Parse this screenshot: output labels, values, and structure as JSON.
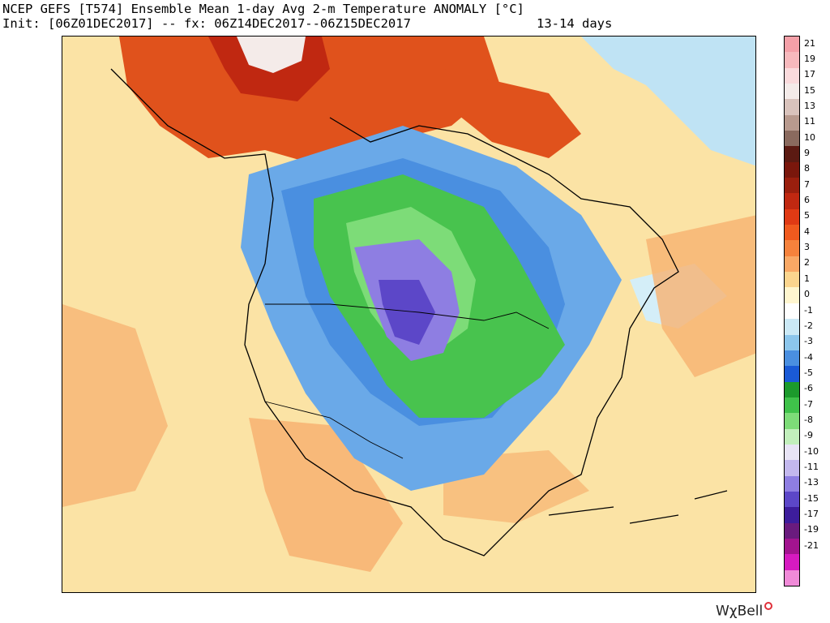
{
  "header": {
    "line1": "NCEP GEFS [T574] Ensemble Mean 1-day Avg 2-m Temperature ANOMALY [°C]",
    "line2": "Init: [06Z01DEC2017] -- fx: 06Z14DEC2017--06Z15DEC2017",
    "range": "13-14 days"
  },
  "brand": "WχBell",
  "colorbar": {
    "units": "°C",
    "levels": [
      {
        "label": "21",
        "color": "#f4a0a8"
      },
      {
        "label": "19",
        "color": "#f7b9bd"
      },
      {
        "label": "17",
        "color": "#fadadc"
      },
      {
        "label": "15",
        "color": "#f4ebe9"
      },
      {
        "label": "13",
        "color": "#d9c3bc"
      },
      {
        "label": "11",
        "color": "#b89a8e"
      },
      {
        "label": "10",
        "color": "#8a6a5e"
      },
      {
        "label": "9",
        "color": "#5b1a12"
      },
      {
        "label": "8",
        "color": "#7a170c"
      },
      {
        "label": "7",
        "color": "#9a1f0e"
      },
      {
        "label": "6",
        "color": "#c02811"
      },
      {
        "label": "5",
        "color": "#e03a14"
      },
      {
        "label": "4",
        "color": "#f05a1e"
      },
      {
        "label": "3",
        "color": "#f6823c"
      },
      {
        "label": "2",
        "color": "#f9a865"
      },
      {
        "label": "1",
        "color": "#fbd58e"
      },
      {
        "label": "0",
        "color": "#fff6cf"
      },
      {
        "label": "-1",
        "color": "#ffffff"
      },
      {
        "label": "-2",
        "color": "#cbe9f6"
      },
      {
        "label": "-3",
        "color": "#8cc6ec"
      },
      {
        "label": "-4",
        "color": "#4a8fe0"
      },
      {
        "label": "-5",
        "color": "#1a5ad6"
      },
      {
        "label": "-6",
        "color": "#1c9a2c"
      },
      {
        "label": "-7",
        "color": "#3fc24a"
      },
      {
        "label": "-8",
        "color": "#7ddc78"
      },
      {
        "label": "-9",
        "color": "#c2efbc"
      },
      {
        "label": "-10",
        "color": "#e8e4f6"
      },
      {
        "label": "-11",
        "color": "#c3b8ee"
      },
      {
        "label": "-13",
        "color": "#8e7ee2"
      },
      {
        "label": "-15",
        "color": "#5c47c8"
      },
      {
        "label": "-17",
        "color": "#3d1d9c"
      },
      {
        "label": "-19",
        "color": "#6a1b7e"
      },
      {
        "label": "-21",
        "color": "#a2148f"
      },
      {
        "label": "",
        "color": "#d61ac0"
      },
      {
        "label": "",
        "color": "#f08ad8"
      }
    ]
  },
  "colors": {
    "warm_light": "#fbe3a5",
    "warm_mid": "#f7b271",
    "warm_strong": "#e0521c",
    "cold_light": "#bfe3f4",
    "cold_mid": "#6aa9e8",
    "cold_green": "#48c34e",
    "cold_violet": "#7a68d8"
  }
}
